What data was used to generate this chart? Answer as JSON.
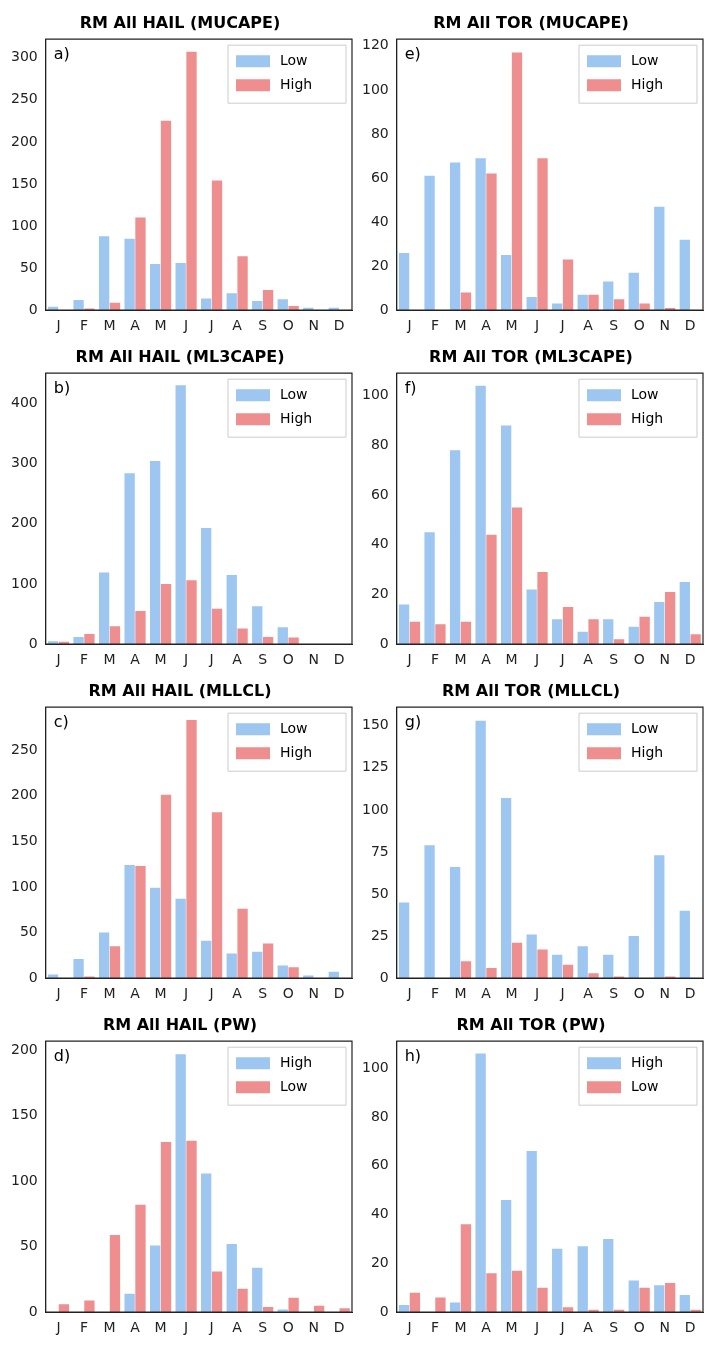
{
  "chart_data": [
    {
      "type": "bar",
      "title": "RM All HAIL (MUCAPE)",
      "annotations": [
        "a)"
      ],
      "categories": [
        "J",
        "F",
        "M",
        "A",
        "M",
        "J",
        "J",
        "A",
        "S",
        "O",
        "N",
        "D"
      ],
      "series": [
        {
          "name": "Low",
          "color": "#9dc6f0",
          "values": [
            4,
            12,
            88,
            85,
            55,
            56,
            14,
            20,
            11,
            13,
            3,
            3
          ]
        },
        {
          "name": "High",
          "color": "#ee8e8e",
          "values": [
            0,
            2,
            9,
            110,
            225,
            307,
            154,
            64,
            24,
            5,
            0,
            0
          ]
        }
      ],
      "ylim": [
        0,
        322
      ],
      "yticks": [
        0,
        50,
        100,
        150,
        200,
        250,
        300
      ],
      "grid": false,
      "legend": "top right"
    },
    {
      "type": "bar",
      "title": "RM All TOR (MUCAPE)",
      "annotations": [
        "e)"
      ],
      "categories": [
        "J",
        "F",
        "M",
        "A",
        "M",
        "J",
        "J",
        "A",
        "S",
        "O",
        "N",
        "D"
      ],
      "series": [
        {
          "name": "Low",
          "color": "#9dc6f0",
          "values": [
            26,
            61,
            67,
            69,
            25,
            6,
            3,
            7,
            13,
            17,
            47,
            32
          ]
        },
        {
          "name": "High",
          "color": "#ee8e8e",
          "values": [
            0,
            0,
            8,
            62,
            117,
            69,
            23,
            7,
            5,
            3,
            1,
            0
          ]
        }
      ],
      "ylim": [
        0,
        123
      ],
      "yticks": [
        0,
        20,
        40,
        60,
        80,
        100,
        120
      ],
      "grid": false,
      "legend": "top right"
    },
    {
      "type": "bar",
      "title": "RM All HAIL (ML3CAPE)",
      "annotations": [
        "b)"
      ],
      "categories": [
        "J",
        "F",
        "M",
        "A",
        "M",
        "J",
        "J",
        "A",
        "S",
        "O",
        "N",
        "D"
      ],
      "series": [
        {
          "name": "Low",
          "color": "#9dc6f0",
          "values": [
            5,
            12,
            119,
            284,
            304,
            430,
            193,
            115,
            63,
            28,
            0,
            0
          ]
        },
        {
          "name": "High",
          "color": "#ee8e8e",
          "values": [
            4,
            17,
            30,
            55,
            100,
            106,
            59,
            26,
            12,
            11,
            0,
            0
          ]
        }
      ],
      "ylim": [
        0,
        450
      ],
      "yticks": [
        0,
        100,
        200,
        300,
        400
      ],
      "grid": false,
      "legend": "top right"
    },
    {
      "type": "bar",
      "title": "RM All TOR (ML3CAPE)",
      "annotations": [
        "f)"
      ],
      "categories": [
        "J",
        "F",
        "M",
        "A",
        "M",
        "J",
        "J",
        "A",
        "S",
        "O",
        "N",
        "D"
      ],
      "series": [
        {
          "name": "Low",
          "color": "#9dc6f0",
          "values": [
            16,
            45,
            78,
            104,
            88,
            22,
            10,
            5,
            10,
            7,
            17,
            25
          ]
        },
        {
          "name": "High",
          "color": "#ee8e8e",
          "values": [
            9,
            8,
            9,
            44,
            55,
            29,
            15,
            10,
            2,
            11,
            21,
            4
          ]
        }
      ],
      "ylim": [
        0,
        109
      ],
      "yticks": [
        0,
        20,
        40,
        60,
        80,
        100
      ],
      "grid": false,
      "legend": "top right"
    },
    {
      "type": "bar",
      "title": "RM All HAIL (MLLCL)",
      "annotations": [
        "c)"
      ],
      "categories": [
        "J",
        "F",
        "M",
        "A",
        "M",
        "J",
        "J",
        "A",
        "S",
        "O",
        "N",
        "D"
      ],
      "series": [
        {
          "name": "Low",
          "color": "#9dc6f0",
          "values": [
            4,
            21,
            50,
            124,
            99,
            87,
            41,
            27,
            29,
            14,
            3,
            7
          ]
        },
        {
          "name": "High",
          "color": "#ee8e8e",
          "values": [
            0,
            2,
            35,
            123,
            201,
            283,
            182,
            76,
            38,
            12,
            0,
            0
          ]
        }
      ],
      "ylim": [
        0,
        297
      ],
      "yticks": [
        0,
        50,
        100,
        150,
        200,
        250
      ],
      "grid": false,
      "legend": "top right"
    },
    {
      "type": "bar",
      "title": "RM All TOR (MLLCL)",
      "annotations": [
        "g)"
      ],
      "categories": [
        "J",
        "F",
        "M",
        "A",
        "M",
        "J",
        "J",
        "A",
        "S",
        "O",
        "N",
        "D"
      ],
      "series": [
        {
          "name": "Low",
          "color": "#9dc6f0",
          "values": [
            45,
            79,
            66,
            153,
            107,
            26,
            14,
            19,
            14,
            25,
            73,
            40
          ]
        },
        {
          "name": "High",
          "color": "#ee8e8e",
          "values": [
            0,
            0,
            10,
            6,
            21,
            17,
            8,
            3,
            1,
            0,
            1,
            0
          ]
        }
      ],
      "ylim": [
        0,
        161
      ],
      "yticks": [
        0,
        25,
        50,
        75,
        100,
        125,
        150
      ],
      "grid": false,
      "legend": "top right"
    },
    {
      "type": "bar",
      "title": "RM All HAIL (PW)",
      "annotations": [
        "d)"
      ],
      "categories": [
        "J",
        "F",
        "M",
        "A",
        "M",
        "J",
        "J",
        "A",
        "S",
        "O",
        "N",
        "D"
      ],
      "series": [
        {
          "name": "High",
          "color": "#9dc6f0",
          "values": [
            0,
            0,
            0,
            14,
            51,
            197,
            106,
            52,
            34,
            2,
            0,
            0
          ]
        },
        {
          "name": "Low",
          "color": "#ee8e8e",
          "values": [
            6,
            9,
            59,
            82,
            130,
            131,
            31,
            18,
            4,
            11,
            5,
            3
          ]
        }
      ],
      "ylim": [
        0,
        207
      ],
      "yticks": [
        0,
        50,
        100,
        150,
        200
      ],
      "grid": false,
      "legend": "top right"
    },
    {
      "type": "bar",
      "title": "RM All TOR (PW)",
      "annotations": [
        "h)"
      ],
      "categories": [
        "J",
        "F",
        "M",
        "A",
        "M",
        "J",
        "J",
        "A",
        "S",
        "O",
        "N",
        "D"
      ],
      "series": [
        {
          "name": "High",
          "color": "#9dc6f0",
          "values": [
            3,
            0,
            4,
            106,
            46,
            66,
            26,
            27,
            30,
            13,
            11,
            7
          ]
        },
        {
          "name": "Low",
          "color": "#ee8e8e",
          "values": [
            8,
            6,
            36,
            16,
            17,
            10,
            2,
            1,
            1,
            10,
            12,
            1
          ]
        }
      ],
      "ylim": [
        0,
        111
      ],
      "yticks": [
        0,
        20,
        40,
        60,
        80,
        100
      ],
      "grid": false,
      "legend": "top right"
    }
  ]
}
